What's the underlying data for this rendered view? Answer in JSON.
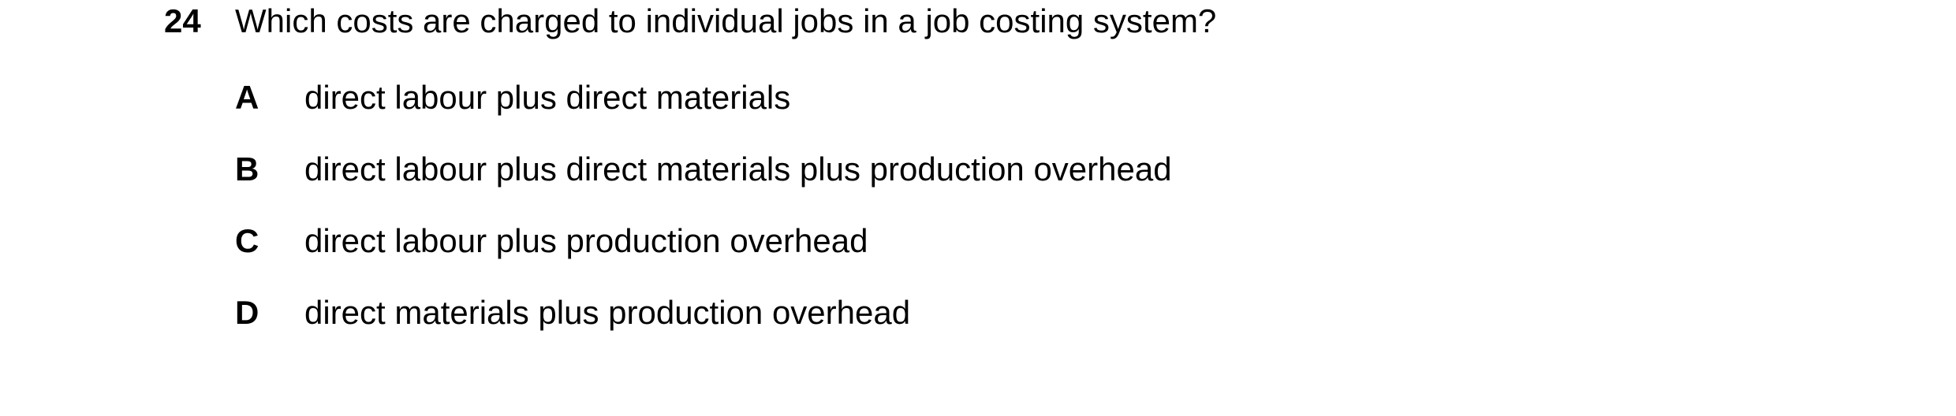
{
  "question": {
    "number": "24",
    "text": "Which costs are charged to individual jobs in a job costing system?",
    "options": [
      {
        "letter": "A",
        "text": "direct labour plus direct materials"
      },
      {
        "letter": "B",
        "text": "direct labour plus direct materials plus production overhead"
      },
      {
        "letter": "C",
        "text": "direct labour plus production overhead"
      },
      {
        "letter": "D",
        "text": "direct materials plus production overhead"
      }
    ]
  }
}
